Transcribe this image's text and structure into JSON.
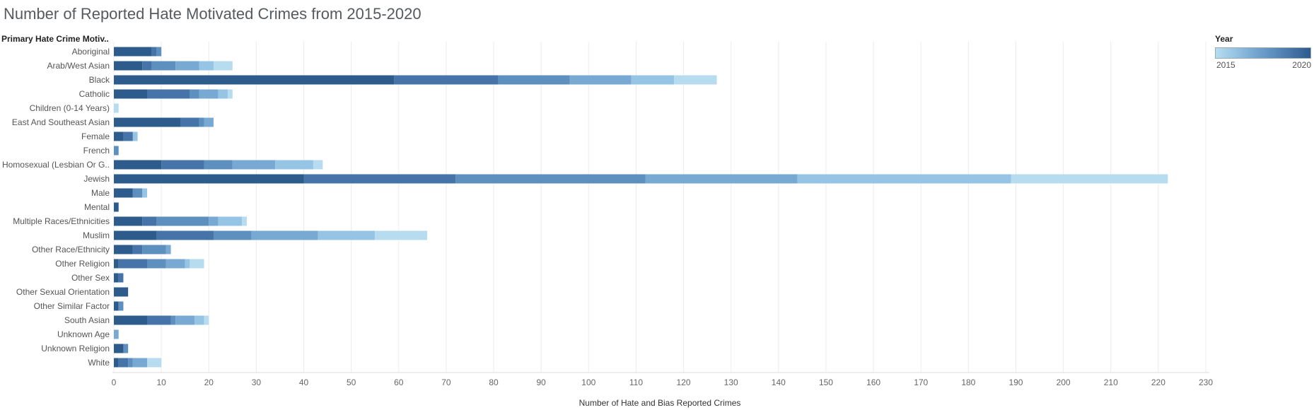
{
  "chart_data": {
    "type": "bar",
    "orientation": "horizontal",
    "stacked": true,
    "title": "Number of Reported Hate Motivated Crimes from 2015-2020",
    "ylabel": "Primary Hate Crime Motiv..",
    "xlabel": "Number of Hate and Bias Reported Crimes",
    "xlim": [
      0,
      230
    ],
    "xticks": [
      0,
      10,
      20,
      30,
      40,
      50,
      60,
      70,
      80,
      90,
      100,
      110,
      120,
      130,
      140,
      150,
      160,
      170,
      180,
      190,
      200,
      210,
      220,
      230
    ],
    "grid": "vertical",
    "legend": {
      "title": "Year",
      "min_label": "2015",
      "max_label": "2020",
      "placement": "top-right",
      "type": "color-gradient"
    },
    "colors": {
      "2015": "#b7dcf0",
      "2016": "#96c4e4",
      "2017": "#78a9d2",
      "2018": "#5d8fbf",
      "2019": "#4674a8",
      "2020": "#2c5b8c"
    },
    "categories": [
      "Aboriginal",
      "Arab/West Asian",
      "Black",
      "Catholic",
      "Children (0-14 Years)",
      "East And Southeast Asian",
      "Female",
      "French",
      "Homosexual (Lesbian Or G..",
      "Jewish",
      "Male",
      "Mental",
      "Multiple Races/Ethnicities",
      "Muslim",
      "Other Race/Ethnicity",
      "Other Religion",
      "Other Sex",
      "Other Sexual Orientation",
      "Other Similar Factor",
      "South Asian",
      "Unknown Age",
      "Unknown Religion",
      "White"
    ],
    "series": [
      {
        "name": "2020",
        "values": [
          8,
          6,
          59,
          7,
          0,
          14,
          2,
          0,
          10,
          40,
          4,
          1,
          6,
          9,
          4,
          1,
          1,
          3,
          1,
          7,
          0,
          2,
          1
        ]
      },
      {
        "name": "2019",
        "values": [
          1,
          2,
          22,
          9,
          0,
          4,
          2,
          0,
          9,
          32,
          0,
          0,
          3,
          12,
          2,
          6,
          1,
          0,
          0,
          5,
          0,
          0,
          2
        ]
      },
      {
        "name": "2018",
        "values": [
          1,
          5,
          15,
          2,
          0,
          1,
          0,
          1,
          6,
          40,
          2,
          0,
          11,
          8,
          5,
          4,
          0,
          0,
          1,
          1,
          0,
          1,
          1
        ]
      },
      {
        "name": "2017",
        "values": [
          0,
          5,
          13,
          4,
          0,
          2,
          0,
          0,
          9,
          32,
          0,
          0,
          2,
          14,
          1,
          4,
          0,
          0,
          0,
          4,
          1,
          0,
          3
        ]
      },
      {
        "name": "2016",
        "values": [
          0,
          3,
          9,
          2,
          0,
          0,
          1,
          0,
          8,
          45,
          1,
          0,
          5,
          12,
          0,
          1,
          0,
          0,
          0,
          2,
          0,
          0,
          0
        ]
      },
      {
        "name": "2015",
        "values": [
          0,
          4,
          9,
          1,
          1,
          0,
          0,
          0,
          2,
          33,
          0,
          0,
          1,
          11,
          0,
          3,
          0,
          0,
          0,
          1,
          0,
          0,
          3
        ]
      }
    ]
  }
}
